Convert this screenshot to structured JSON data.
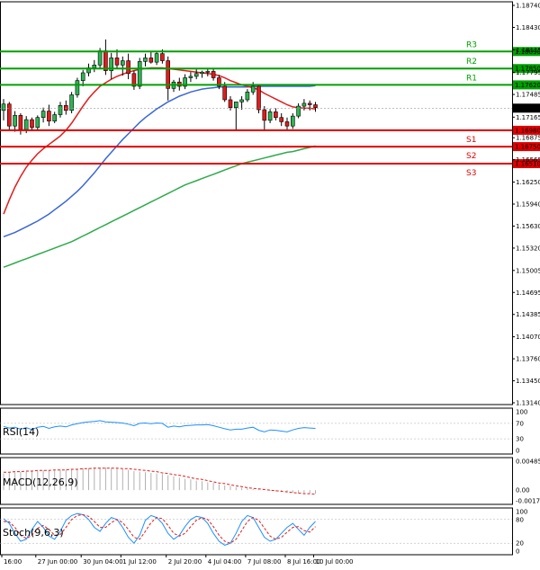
{
  "chart_data": {
    "type": "candlestick",
    "main": {
      "y_ticks": [
        "1.18740",
        "1.18430",
        "1.18115",
        "1.17795",
        "1.17485",
        "1.17165",
        "1.16875",
        "1.16565",
        "1.16250",
        "1.15940",
        "1.15630",
        "1.15320",
        "1.15005",
        "1.14695",
        "1.14385",
        "1.14070",
        "1.13760",
        "1.13450",
        "1.13140"
      ],
      "ylim": [
        1.1314,
        1.1874
      ],
      "current_price": "1.17292",
      "levels": [
        {
          "name": "R3",
          "price": 1.1809,
          "label": "1.18090",
          "color": "#00a000"
        },
        {
          "name": "R2",
          "price": 1.1785,
          "label": "1.17850",
          "color": "#00a000"
        },
        {
          "name": "R1",
          "price": 1.1762,
          "label": "1.17620",
          "color": "#00a000"
        },
        {
          "name": "S1",
          "price": 1.1698,
          "label": "1.16980",
          "color": "#e00000"
        },
        {
          "name": "S2",
          "price": 1.1675,
          "label": "1.16750",
          "color": "#e00000"
        },
        {
          "name": "S3",
          "price": 1.1651,
          "label": "1.16510",
          "color": "#e00000"
        }
      ],
      "candles": [
        [
          1.1726,
          1.1742,
          1.1712,
          1.1735
        ],
        [
          1.1735,
          1.1738,
          1.1698,
          1.1704
        ],
        [
          1.1704,
          1.1725,
          1.1696,
          1.1719
        ],
        [
          1.1719,
          1.1722,
          1.1692,
          1.1699
        ],
        [
          1.1699,
          1.1718,
          1.1694,
          1.1713
        ],
        [
          1.1713,
          1.1716,
          1.1697,
          1.1702
        ],
        [
          1.1702,
          1.1719,
          1.1699,
          1.1716
        ],
        [
          1.1716,
          1.173,
          1.1709,
          1.1725
        ],
        [
          1.1725,
          1.1734,
          1.1704,
          1.1711
        ],
        [
          1.1711,
          1.1724,
          1.1708,
          1.172
        ],
        [
          1.172,
          1.1738,
          1.1716,
          1.1733
        ],
        [
          1.1733,
          1.174,
          1.172,
          1.1726
        ],
        [
          1.1726,
          1.1752,
          1.1722,
          1.1748
        ],
        [
          1.1748,
          1.1772,
          1.1744,
          1.1768
        ],
        [
          1.1768,
          1.1783,
          1.176,
          1.1779
        ],
        [
          1.1779,
          1.1792,
          1.1774,
          1.1786
        ],
        [
          1.1786,
          1.1797,
          1.178,
          1.179
        ],
        [
          1.179,
          1.1814,
          1.1784,
          1.181
        ],
        [
          1.181,
          1.1826,
          1.1776,
          1.1782
        ],
        [
          1.1782,
          1.1807,
          1.177,
          1.18
        ],
        [
          1.18,
          1.1812,
          1.1784,
          1.179
        ],
        [
          1.179,
          1.1802,
          1.1775,
          1.1796
        ],
        [
          1.1796,
          1.1806,
          1.177,
          1.1778
        ],
        [
          1.1778,
          1.1782,
          1.1755,
          1.176
        ],
        [
          1.176,
          1.18,
          1.1756,
          1.1795
        ],
        [
          1.1795,
          1.1806,
          1.1788,
          1.18
        ],
        [
          1.18,
          1.1809,
          1.1792,
          1.1794
        ],
        [
          1.1794,
          1.181,
          1.179,
          1.1806
        ],
        [
          1.1806,
          1.1812,
          1.1792,
          1.1796
        ],
        [
          1.1796,
          1.1802,
          1.174,
          1.1757
        ],
        [
          1.1757,
          1.1769,
          1.1752,
          1.1766
        ],
        [
          1.1766,
          1.1772,
          1.1754,
          1.176
        ],
        [
          1.176,
          1.1777,
          1.1756,
          1.1772
        ],
        [
          1.1772,
          1.178,
          1.1766,
          1.1774
        ],
        [
          1.1774,
          1.1784,
          1.177,
          1.1778
        ],
        [
          1.1778,
          1.1782,
          1.1772,
          1.178
        ],
        [
          1.178,
          1.1786,
          1.1774,
          1.1781
        ],
        [
          1.1781,
          1.1786,
          1.1768,
          1.1772
        ],
        [
          1.1772,
          1.1776,
          1.1756,
          1.176
        ],
        [
          1.176,
          1.1766,
          1.1738,
          1.1741
        ],
        [
          1.1741,
          1.1746,
          1.1726,
          1.173
        ],
        [
          1.173,
          1.1738,
          1.1698,
          1.1738
        ],
        [
          1.1738,
          1.1746,
          1.1727,
          1.1741
        ],
        [
          1.1741,
          1.1756,
          1.1738,
          1.1752
        ],
        [
          1.1752,
          1.1766,
          1.1748,
          1.176
        ],
        [
          1.176,
          1.1762,
          1.1722,
          1.1727
        ],
        [
          1.1727,
          1.1732,
          1.1697,
          1.1712
        ],
        [
          1.1712,
          1.1728,
          1.1708,
          1.1724
        ],
        [
          1.1724,
          1.1729,
          1.1712,
          1.1716
        ],
        [
          1.1716,
          1.1722,
          1.1704,
          1.171
        ],
        [
          1.171,
          1.1716,
          1.1698,
          1.1704
        ],
        [
          1.1704,
          1.1722,
          1.17,
          1.1718
        ],
        [
          1.1718,
          1.1736,
          1.1715,
          1.1732
        ],
        [
          1.1732,
          1.1742,
          1.1726,
          1.1736
        ],
        [
          1.1736,
          1.174,
          1.1726,
          1.1734
        ],
        [
          1.1734,
          1.1738,
          1.1724,
          1.173
        ]
      ],
      "ma_red": [
        1.158,
        1.16,
        1.1618,
        1.1633,
        1.1646,
        1.1656,
        1.1665,
        1.1672,
        1.1678,
        1.1684,
        1.169,
        1.1698,
        1.1708,
        1.172,
        1.1732,
        1.1743,
        1.1752,
        1.176,
        1.1765,
        1.177,
        1.1774,
        1.1777,
        1.178,
        1.1782,
        1.1784,
        1.1785,
        1.1786,
        1.1786,
        1.1786,
        1.1785,
        1.1784,
        1.1783,
        1.1782,
        1.1781,
        1.178,
        1.1779,
        1.1778,
        1.1777,
        1.1775,
        1.1772,
        1.1768,
        1.1765,
        1.1762,
        1.176,
        1.1758,
        1.1755,
        1.175,
        1.1746,
        1.1742,
        1.1738,
        1.1734,
        1.1731,
        1.173,
        1.1729,
        1.1729,
        1.1728
      ],
      "ma_blue": [
        1.1548,
        1.1551,
        1.1554,
        1.1558,
        1.1562,
        1.1566,
        1.157,
        1.1575,
        1.158,
        1.1586,
        1.1592,
        1.1598,
        1.1605,
        1.1612,
        1.162,
        1.1629,
        1.1638,
        1.1648,
        1.1658,
        1.1667,
        1.1676,
        1.1685,
        1.1693,
        1.1701,
        1.1709,
        1.1716,
        1.1722,
        1.1728,
        1.1733,
        1.1738,
        1.1742,
        1.1746,
        1.1749,
        1.1752,
        1.1754,
        1.1756,
        1.1757,
        1.1758,
        1.1759,
        1.1759,
        1.1759,
        1.1759,
        1.1759,
        1.1759,
        1.176,
        1.176,
        1.176,
        1.176,
        1.176,
        1.176,
        1.176,
        1.176,
        1.176,
        1.176,
        1.176,
        1.1761
      ],
      "ma_green": [
        1.1505,
        1.1508,
        1.1511,
        1.1514,
        1.1517,
        1.152,
        1.1523,
        1.1526,
        1.1529,
        1.1532,
        1.1535,
        1.1538,
        1.1541,
        1.1545,
        1.1549,
        1.1553,
        1.1557,
        1.1561,
        1.1565,
        1.1569,
        1.1573,
        1.1577,
        1.1581,
        1.1585,
        1.1589,
        1.1593,
        1.1597,
        1.1601,
        1.1605,
        1.1609,
        1.1613,
        1.1617,
        1.1621,
        1.1624,
        1.1627,
        1.163,
        1.1633,
        1.1636,
        1.1639,
        1.1642,
        1.1645,
        1.1648,
        1.1651,
        1.1653,
        1.1655,
        1.1657,
        1.1659,
        1.1661,
        1.1663,
        1.1665,
        1.1667,
        1.1668,
        1.167,
        1.1672,
        1.1674,
        1.1676
      ]
    },
    "rsi": {
      "title": "RSI(14)",
      "ticks": [
        "100",
        "70",
        "30",
        "0"
      ],
      "levels": [
        100,
        70,
        30,
        0
      ],
      "ylim": [
        0,
        100
      ],
      "values": [
        62,
        58,
        60,
        55,
        59,
        54,
        60,
        62,
        57,
        61,
        63,
        61,
        66,
        69,
        72,
        74,
        75,
        77,
        74,
        73,
        72,
        71,
        68,
        64,
        70,
        71,
        69,
        71,
        70,
        60,
        63,
        61,
        64,
        65,
        66,
        66,
        67,
        64,
        60,
        56,
        53,
        55,
        55,
        58,
        60,
        52,
        48,
        53,
        52,
        50,
        48,
        53,
        57,
        59,
        58,
        57
      ]
    },
    "macd": {
      "title": "MACD(12,26,9)",
      "ticks": [
        "0.004858",
        "0.00",
        "-0.001788"
      ],
      "ylim": [
        -0.001788,
        0.004858
      ],
      "histogram": [
        0.0028,
        0.0029,
        0.003,
        0.0031,
        0.0031,
        0.0032,
        0.0032,
        0.0033,
        0.0033,
        0.0033,
        0.0034,
        0.0034,
        0.0035,
        0.0036,
        0.0037,
        0.0037,
        0.0038,
        0.0038,
        0.0038,
        0.0037,
        0.0036,
        0.0035,
        0.0034,
        0.0032,
        0.0031,
        0.003,
        0.0029,
        0.0028,
        0.0027,
        0.0025,
        0.0023,
        0.0021,
        0.0019,
        0.0018,
        0.0016,
        0.0015,
        0.0013,
        0.0012,
        0.001,
        0.0008,
        0.0007,
        0.0005,
        0.0004,
        0.0003,
        0.0002,
        0.0001,
        0.0,
        -0.0001,
        -0.0002,
        -0.0003,
        -0.0004,
        -0.0004,
        -0.0005,
        -0.0005,
        -0.0005,
        -0.0006
      ],
      "signal": [
        0.003,
        0.003,
        0.0031,
        0.0031,
        0.0032,
        0.0032,
        0.0033,
        0.0033,
        0.0033,
        0.0034,
        0.0034,
        0.0034,
        0.0035,
        0.0035,
        0.0036,
        0.0036,
        0.0037,
        0.0037,
        0.0037,
        0.0037,
        0.0037,
        0.0036,
        0.0036,
        0.0035,
        0.0034,
        0.0033,
        0.0032,
        0.0031,
        0.0029,
        0.0028,
        0.0026,
        0.0025,
        0.0023,
        0.0021,
        0.0019,
        0.0018,
        0.0016,
        0.0014,
        0.0012,
        0.0011,
        0.0009,
        0.0007,
        0.0006,
        0.0004,
        0.0003,
        0.0002,
        0.0001,
        0.0,
        -0.0001,
        -0.0002,
        -0.0003,
        -0.0004,
        -0.0005,
        -0.0006,
        -0.0006,
        -0.0007
      ]
    },
    "stoch": {
      "title": "Stoch(9,6,3)",
      "ticks": [
        "100",
        "80",
        "20",
        "0"
      ],
      "levels": [
        100,
        80,
        20,
        0
      ],
      "ylim": [
        0,
        100
      ],
      "k": [
        82,
        70,
        45,
        25,
        30,
        55,
        75,
        60,
        38,
        30,
        50,
        78,
        90,
        95,
        92,
        80,
        60,
        50,
        70,
        85,
        80,
        60,
        35,
        20,
        40,
        78,
        90,
        85,
        70,
        45,
        30,
        40,
        62,
        80,
        88,
        85,
        70,
        45,
        25,
        15,
        20,
        45,
        75,
        90,
        85,
        60,
        35,
        25,
        30,
        45,
        60,
        70,
        55,
        40,
        60,
        75
      ],
      "d": [
        75,
        74,
        60,
        40,
        32,
        40,
        58,
        65,
        55,
        40,
        42,
        60,
        80,
        90,
        92,
        88,
        75,
        60,
        60,
        72,
        80,
        72,
        55,
        35,
        30,
        50,
        72,
        85,
        82,
        65,
        45,
        38,
        45,
        62,
        78,
        85,
        80,
        62,
        40,
        25,
        20,
        30,
        52,
        75,
        85,
        78,
        58,
        38,
        30,
        35,
        48,
        60,
        62,
        52,
        48,
        62
      ]
    },
    "x_ticks": [
      "16:00",
      "27 Jun 00:00",
      "30 Jun 04:00",
      "1 Jul 12:00",
      "2 Jul 20:00",
      "4 Jul 04:00",
      "7 Jul 08:00",
      "8 Jul 16:00",
      "10 Jul 00:00"
    ]
  }
}
